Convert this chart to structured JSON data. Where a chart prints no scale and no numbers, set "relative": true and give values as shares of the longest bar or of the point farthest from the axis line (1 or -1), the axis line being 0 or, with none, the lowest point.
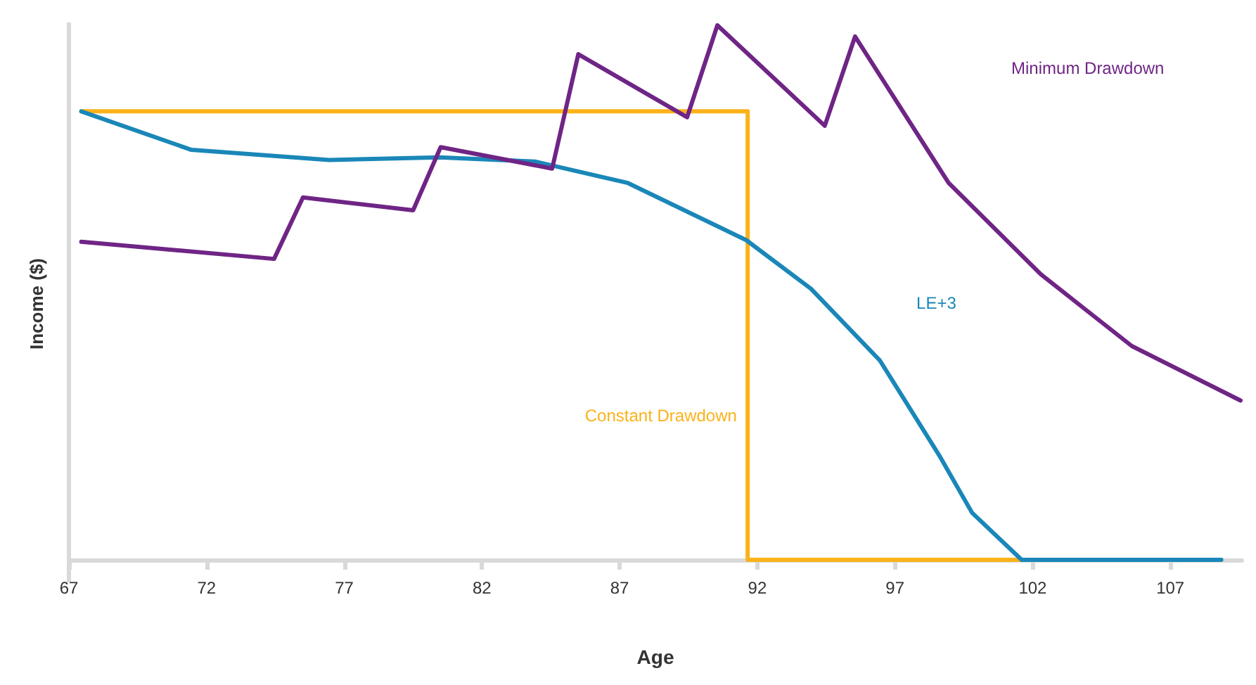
{
  "chart_data": {
    "type": "line",
    "relative": true,
    "xlabel": "Age",
    "ylabel": "Income ($)",
    "xlim": [
      67,
      109.6
    ],
    "xticks": [
      67,
      72,
      77,
      82,
      87,
      92,
      97,
      102,
      107
    ],
    "legend": false,
    "grid": false,
    "marker": "none",
    "series": [
      {
        "name": "Minimum Drawdown",
        "color": "#6f2585",
        "x": [
          67.45,
          74.45,
          75.5,
          79.5,
          80.5,
          84.55,
          85.5,
          89.45,
          90.55,
          94.45,
          95.55,
          98.95,
          102.3,
          105.6,
          109.55
        ],
        "values": [
          0.595,
          0.563,
          0.678,
          0.654,
          0.772,
          0.732,
          0.946,
          0.828,
          1.0,
          0.812,
          0.979,
          0.705,
          0.534,
          0.4,
          0.298
        ]
      },
      {
        "name": "LE+3",
        "color": "#1a87b8",
        "x": [
          67.45,
          71.45,
          76.45,
          80.45,
          83.95,
          87.3,
          91.6,
          93.95,
          96.45,
          98.6,
          99.8,
          101.6,
          108.85
        ],
        "values": [
          0.839,
          0.767,
          0.748,
          0.753,
          0.745,
          0.705,
          0.598,
          0.507,
          0.373,
          0.196,
          0.088,
          0,
          0
        ]
      },
      {
        "name": "Constant Drawdown",
        "color": "#fbb21a",
        "x": [
          67.45,
          91.65,
          91.65,
          101.6
        ],
        "values": [
          0.839,
          0.839,
          0,
          0
        ]
      }
    ]
  }
}
